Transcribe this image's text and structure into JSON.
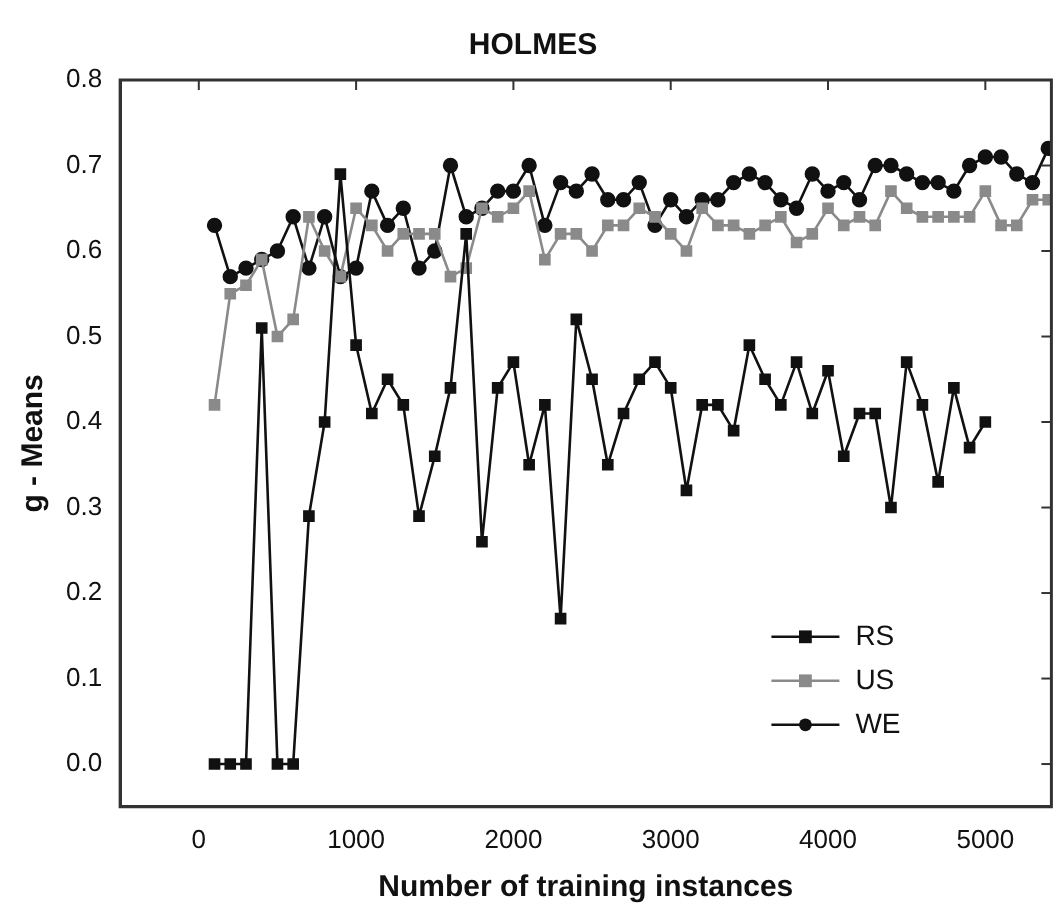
{
  "chart_data": {
    "type": "line",
    "title": "HOLMES",
    "xlabel": "Number of training instances",
    "ylabel": "g - Means",
    "xlim": [
      -500,
      5420
    ],
    "xticks": [
      0,
      1000,
      2000,
      3000,
      4000,
      5000
    ],
    "ylim": [
      -0.05,
      0.8
    ],
    "yticks": [
      {
        "value": 0,
        "label": "0.0"
      },
      {
        "value": 0.1,
        "label": "0.1"
      },
      {
        "value": 0.2,
        "label": "0.2"
      },
      {
        "value": 0.3,
        "label": "0.3"
      },
      {
        "value": 0.4,
        "label": "0.4"
      },
      {
        "value": 0.5,
        "label": "0.5"
      },
      {
        "value": 0.6,
        "label": "0.6"
      },
      {
        "value": 0.7,
        "label": "0.7"
      },
      {
        "value": 0.8,
        "label": "0.8"
      }
    ],
    "grid": false,
    "legend": "bottom right",
    "line_style": "solid",
    "series": [
      {
        "name": "RS",
        "color": "#111111",
        "marker": "square",
        "x": [
          100,
          200,
          300,
          400,
          500,
          600,
          700,
          800,
          900,
          1000,
          1100,
          1200,
          1300,
          1400,
          1500,
          1600,
          1700,
          1800,
          1900,
          2000,
          2100,
          2200,
          2300,
          2400,
          2500,
          2600,
          2700,
          2800,
          2900,
          3000,
          3100,
          3200,
          3300,
          3400,
          3500,
          3600,
          3700,
          3800,
          3900,
          4000,
          4100,
          4200,
          4300,
          4400,
          4500,
          4600,
          4700,
          4800,
          4900,
          5000
        ],
        "values": [
          0,
          0,
          0,
          0.51,
          0,
          0,
          0.29,
          0.4,
          0.69,
          0.49,
          0.41,
          0.45,
          0.42,
          0.29,
          0.36,
          0.44,
          0.62,
          0.26,
          0.44,
          0.47,
          0.35,
          0.42,
          0.17,
          0.52,
          0.45,
          0.35,
          0.41,
          0.45,
          0.47,
          0.44,
          0.32,
          0.42,
          0.42,
          0.39,
          0.49,
          0.45,
          0.42,
          0.47,
          0.41,
          0.46,
          0.36,
          0.41,
          0.41,
          0.3,
          0.47,
          0.42,
          0.33,
          0.44,
          0.37,
          0.4
        ]
      },
      {
        "name": "US",
        "color": "#8a8a8a",
        "marker": "square",
        "x": [
          100,
          200,
          300,
          400,
          500,
          600,
          700,
          800,
          900,
          1000,
          1100,
          1200,
          1300,
          1400,
          1500,
          1600,
          1700,
          1800,
          1900,
          2000,
          2100,
          2200,
          2300,
          2400,
          2500,
          2600,
          2700,
          2800,
          2900,
          3000,
          3100,
          3200,
          3300,
          3400,
          3500,
          3600,
          3700,
          3800,
          3900,
          4000,
          4100,
          4200,
          4300,
          4400,
          4500,
          4600,
          4700,
          4800,
          4900,
          5000,
          5100,
          5200,
          5300,
          5400
        ],
        "values": [
          0.42,
          0.55,
          0.56,
          0.59,
          0.5,
          0.52,
          0.64,
          0.6,
          0.57,
          0.65,
          0.63,
          0.6,
          0.62,
          0.62,
          0.62,
          0.57,
          0.58,
          0.65,
          0.64,
          0.65,
          0.67,
          0.59,
          0.62,
          0.62,
          0.6,
          0.63,
          0.63,
          0.65,
          0.64,
          0.62,
          0.6,
          0.65,
          0.63,
          0.63,
          0.62,
          0.63,
          0.64,
          0.61,
          0.62,
          0.65,
          0.63,
          0.64,
          0.63,
          0.67,
          0.65,
          0.64,
          0.64,
          0.64,
          0.64,
          0.67,
          0.63,
          0.63,
          0.66,
          0.66
        ]
      },
      {
        "name": "WE",
        "color": "#111111",
        "marker": "circle",
        "x": [
          100,
          200,
          300,
          400,
          500,
          600,
          700,
          800,
          900,
          1000,
          1100,
          1200,
          1300,
          1400,
          1500,
          1600,
          1700,
          1800,
          1900,
          2000,
          2100,
          2200,
          2300,
          2400,
          2500,
          2600,
          2700,
          2800,
          2900,
          3000,
          3100,
          3200,
          3300,
          3400,
          3500,
          3600,
          3700,
          3800,
          3900,
          4000,
          4100,
          4200,
          4300,
          4400,
          4500,
          4600,
          4700,
          4800,
          4900,
          5000,
          5100,
          5200,
          5300,
          5400
        ],
        "values": [
          0.63,
          0.57,
          0.58,
          0.59,
          0.6,
          0.64,
          0.58,
          0.64,
          0.57,
          0.58,
          0.67,
          0.63,
          0.65,
          0.58,
          0.6,
          0.7,
          0.64,
          0.65,
          0.67,
          0.67,
          0.7,
          0.63,
          0.68,
          0.67,
          0.69,
          0.66,
          0.66,
          0.68,
          0.63,
          0.66,
          0.64,
          0.66,
          0.66,
          0.68,
          0.69,
          0.68,
          0.66,
          0.65,
          0.69,
          0.67,
          0.68,
          0.66,
          0.7,
          0.7,
          0.69,
          0.68,
          0.68,
          0.67,
          0.7,
          0.71,
          0.71,
          0.69,
          0.68,
          0.72
        ]
      }
    ]
  }
}
